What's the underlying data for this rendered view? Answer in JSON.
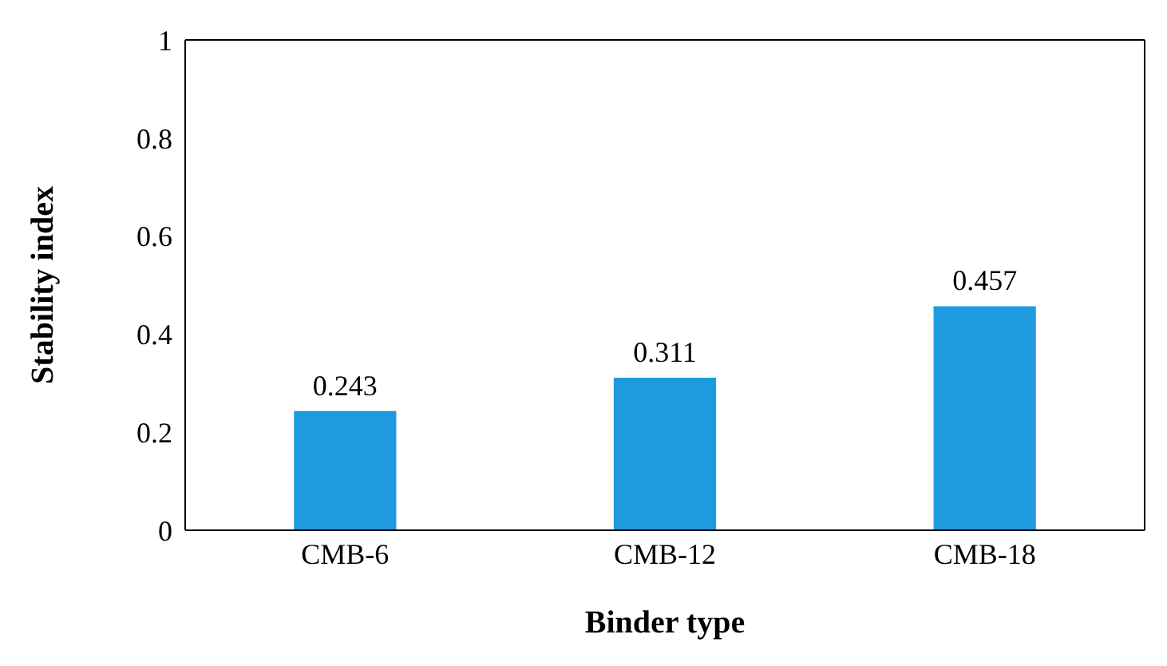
{
  "chart_data": {
    "type": "bar",
    "xlabel": "Binder type",
    "ylabel": "Stability index",
    "categories": [
      "CMB-6",
      "CMB-12",
      "CMB-18"
    ],
    "values": [
      0.243,
      0.311,
      0.457
    ],
    "color": "#1e9be0",
    "ylim": [
      0,
      1
    ],
    "yticks": [
      0,
      0.2,
      0.4,
      0.6,
      0.8,
      1
    ],
    "data_labels": true,
    "grid": false
  }
}
